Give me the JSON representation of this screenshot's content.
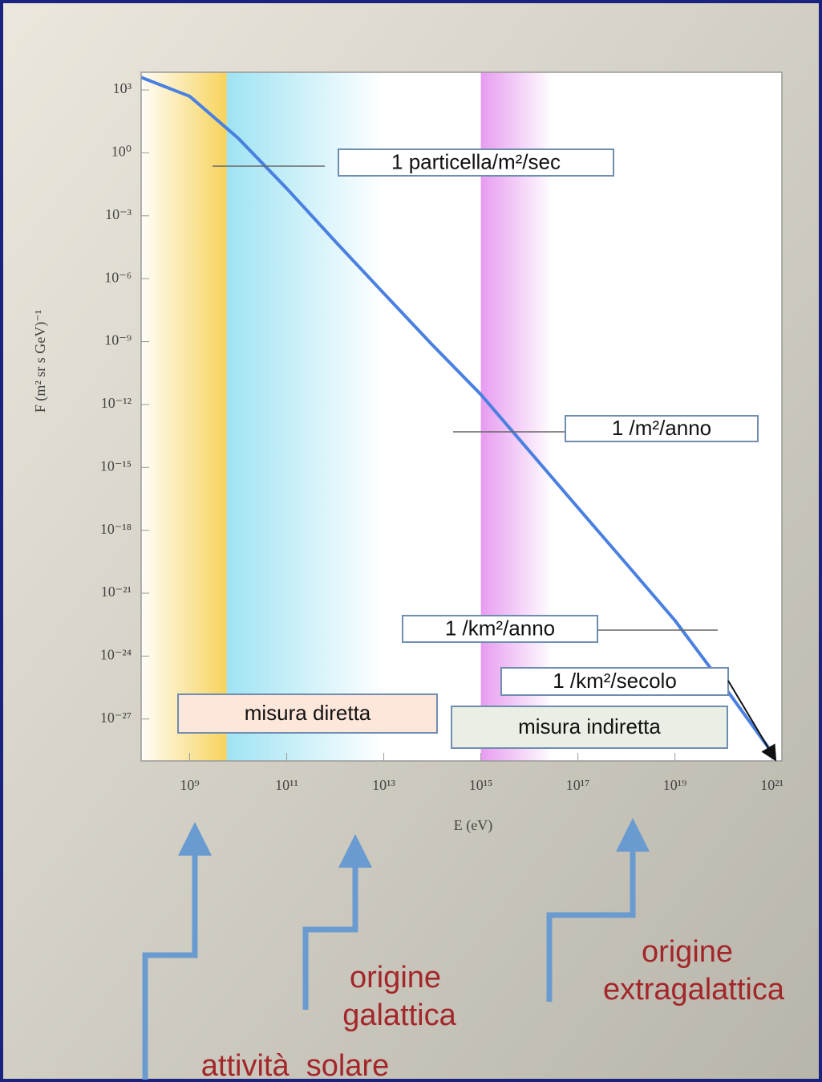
{
  "chart_data": {
    "type": "line",
    "xlabel": "E (eV)",
    "ylabel": "F (m² sr s GeV)⁻¹",
    "log_x": true,
    "log_y": true,
    "xlim": [
      100000000.0,
      1.6e+21
    ],
    "ylim": [
      1e-29,
      7000
    ],
    "xticks": [
      {
        "value": 1000000000.0,
        "label": "10⁹"
      },
      {
        "value": 100000000000.0,
        "label": "10¹¹"
      },
      {
        "value": 10000000000000.0,
        "label": "10¹³"
      },
      {
        "value": 1000000000000000.0,
        "label": "10¹⁵"
      },
      {
        "value": 1e+17,
        "label": "10¹⁷"
      },
      {
        "value": 1e+19,
        "label": "10¹⁹"
      },
      {
        "value": 1e+21,
        "label": "10²¹"
      }
    ],
    "yticks": [
      {
        "value": 1000,
        "label": "10³"
      },
      {
        "value": 1,
        "label": "10⁰"
      },
      {
        "value": 0.001,
        "label": "10⁻³"
      },
      {
        "value": 1e-06,
        "label": "10⁻⁶"
      },
      {
        "value": 1e-09,
        "label": "10⁻⁹"
      },
      {
        "value": 1e-12,
        "label": "10⁻¹²"
      },
      {
        "value": 1e-15,
        "label": "10⁻¹⁵"
      },
      {
        "value": 1e-18,
        "label": "10⁻¹⁸"
      },
      {
        "value": 1e-21,
        "label": "10⁻²¹"
      },
      {
        "value": 1e-24,
        "label": "10⁻²⁴"
      },
      {
        "value": 1e-27,
        "label": "10⁻²⁷"
      }
    ],
    "x": [
      100000000.0,
      1000000000.0,
      10000000000.0,
      100000000000.0,
      1000000000000.0,
      10000000000000.0,
      100000000000000.0,
      1000000000000000.0,
      1e+16,
      1e+17,
      1e+18,
      1e+19,
      1e+20,
      1e+21
    ],
    "series": [
      {
        "color": "#4a80e0",
        "values": [
          4000,
          500,
          5,
          0.02,
          6e-05,
          2e-07,
          7e-10,
          3e-12,
          6e-15,
          1.2e-17,
          2.5e-20,
          5e-23,
          4e-26,
          2.5e-29
        ]
      }
    ],
    "bands": [
      {
        "x": [
          100000000.0,
          5800000000.0
        ],
        "color": "#f7d35c"
      },
      {
        "x": [
          5800000000.0,
          10000000000000.0
        ],
        "color": "#9fe3f3"
      },
      {
        "x": [
          1000000000000000.0,
          3e+16
        ],
        "color": "#e79cf0"
      }
    ],
    "annotations": [
      "1 particella/m²/sec",
      "1 /m²/anno",
      "1 /km²/anno",
      "1 /km²/secolo",
      "misura diretta",
      "misura indiretta"
    ],
    "captions": [
      "origine",
      "galattica",
      "origine",
      "extragalattica",
      "attività  solare"
    ]
  }
}
